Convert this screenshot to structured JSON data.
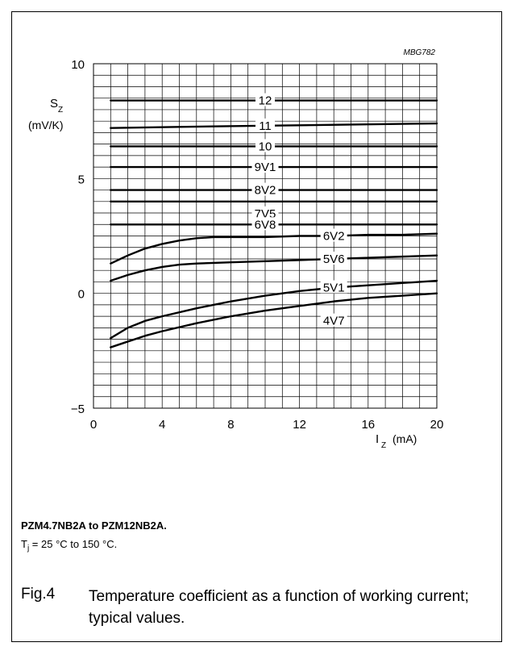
{
  "chart_data": {
    "type": "line",
    "code": "MBG782",
    "ylabel_symbol": "S",
    "ylabel_sub": "Z",
    "ylabel_unit": "(mV/K)",
    "xlabel_symbol": "I",
    "xlabel_sub": "Z",
    "xlabel_unit": "(mA)",
    "xlim": [
      0,
      20
    ],
    "ylim": [
      -5,
      10
    ],
    "xticks": [
      "0",
      "4",
      "8",
      "12",
      "16",
      "20"
    ],
    "yticks": [
      {
        "value": 10,
        "label": "10"
      },
      {
        "value": 5,
        "label": "5"
      },
      {
        "value": 0,
        "label": "0"
      },
      {
        "value": -5,
        "label": "−5"
      }
    ],
    "grid": true,
    "series": [
      {
        "name": "12",
        "label_x": 10,
        "x": [
          1,
          20
        ],
        "y": [
          8.4,
          8.4
        ]
      },
      {
        "name": "11",
        "label_x": 10,
        "x": [
          1,
          5,
          10,
          15,
          20
        ],
        "y": [
          7.2,
          7.25,
          7.3,
          7.35,
          7.4
        ]
      },
      {
        "name": "10",
        "label_x": 10,
        "x": [
          1,
          20
        ],
        "y": [
          6.4,
          6.4
        ]
      },
      {
        "name": "9V1",
        "label_x": 10,
        "x": [
          1,
          20
        ],
        "y": [
          5.5,
          5.5
        ]
      },
      {
        "name": "8V2",
        "label_x": 10,
        "x": [
          1,
          20
        ],
        "y": [
          4.5,
          4.5
        ]
      },
      {
        "name": "7V5",
        "label_x": 10,
        "x": [
          1,
          20
        ],
        "y": [
          4.0,
          4.0
        ]
      },
      {
        "name": "6V8",
        "label_x": 10,
        "x": [
          1,
          20
        ],
        "y": [
          3.0,
          3.0
        ]
      },
      {
        "name": "6V2",
        "label_x": 14,
        "x": [
          1,
          2,
          3,
          4,
          5,
          6,
          7,
          8,
          10,
          12,
          14,
          16,
          18,
          20
        ],
        "y": [
          1.3,
          1.65,
          1.95,
          2.15,
          2.3,
          2.4,
          2.45,
          2.45,
          2.45,
          2.5,
          2.5,
          2.55,
          2.55,
          2.6
        ]
      },
      {
        "name": "5V6",
        "label_x": 14,
        "x": [
          1,
          2,
          3,
          4,
          5,
          6,
          8,
          10,
          12,
          14,
          16,
          18,
          20
        ],
        "y": [
          0.55,
          0.8,
          1.0,
          1.15,
          1.25,
          1.3,
          1.35,
          1.4,
          1.45,
          1.5,
          1.55,
          1.6,
          1.65
        ]
      },
      {
        "name": "5V1",
        "label_x": 14,
        "x": [
          1,
          2,
          3,
          4,
          6,
          8,
          10,
          12,
          14,
          16,
          18,
          20
        ],
        "y": [
          -1.95,
          -1.5,
          -1.2,
          -1.0,
          -0.65,
          -0.35,
          -0.1,
          0.1,
          0.25,
          0.35,
          0.45,
          0.55
        ]
      },
      {
        "name": "4V7",
        "label_x": 14,
        "x": [
          1,
          2,
          3,
          4,
          6,
          8,
          10,
          12,
          14,
          16,
          18,
          20
        ],
        "y": [
          -2.35,
          -2.1,
          -1.85,
          -1.65,
          -1.3,
          -1.0,
          -0.75,
          -0.55,
          -0.35,
          -0.2,
          -0.1,
          0.0
        ]
      }
    ]
  },
  "caption": {
    "title": "PZM4.7NB2A to PZM12NB2A.",
    "cond_prefix": "T",
    "cond_sub": "j",
    "cond_rest": " = 25 °C to 150 °C.",
    "fig_number": "Fig.4",
    "fig_text": "Temperature coefficient as a function of working current; typical values."
  }
}
